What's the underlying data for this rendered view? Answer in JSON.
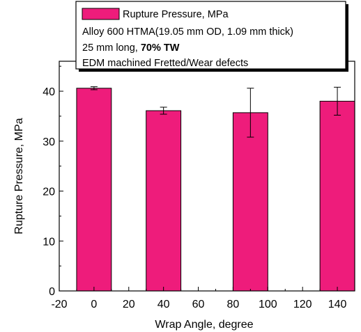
{
  "chart_data": {
    "type": "bar",
    "x": [
      0,
      40,
      90,
      140
    ],
    "values": [
      40.6,
      36.1,
      35.7,
      38.0
    ],
    "errors": [
      0.3,
      0.7,
      4.9,
      2.8
    ],
    "xlabel": "Wrap Angle, degree",
    "ylabel": "Rupture Pressure, MPa",
    "xlim": [
      -20,
      150
    ],
    "ylim": [
      0,
      46
    ],
    "xticks": [
      -20,
      0,
      20,
      40,
      60,
      80,
      100,
      120,
      140
    ],
    "yticks": [
      0,
      10,
      20,
      30,
      40
    ],
    "bar_width": 20,
    "bar_color": "#ee1c7b",
    "grid": false,
    "legend": {
      "placement": "top-center",
      "series_name": "Rupture Pressure, MPa",
      "line1": "Alloy 600 HTMA(19.05 mm OD, 1.09 mm thick)",
      "line2_prefix": "25 mm long, ",
      "line2_bold": "70% TW",
      "line3": "EDM machined Fretted/Wear defects"
    }
  }
}
